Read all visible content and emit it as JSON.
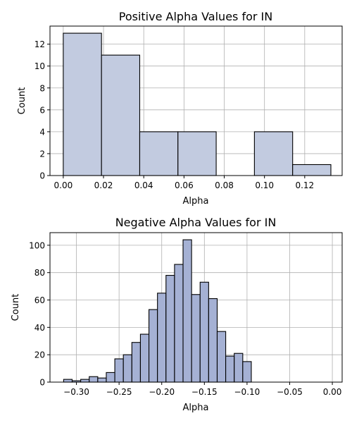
{
  "chart_data": [
    {
      "type": "bar",
      "title": "Positive Alpha Values for IN",
      "xlabel": "Alpha",
      "ylabel": "Count",
      "color": "#c2cbe0",
      "grid": true,
      "xlim": [
        -0.0066,
        0.1386
      ],
      "ylim": [
        0,
        13.65
      ],
      "xticks": [
        "0.00",
        "0.02",
        "0.04",
        "0.06",
        "0.08",
        "0.10",
        "0.12"
      ],
      "xtick_values": [
        0.0,
        0.02,
        0.04,
        0.06,
        0.08,
        0.1,
        0.12
      ],
      "yticks": [
        "0",
        "2",
        "4",
        "6",
        "8",
        "10",
        "12"
      ],
      "ytick_values": [
        0,
        2,
        4,
        6,
        8,
        10,
        12
      ],
      "bins": [
        {
          "x0": 0.0,
          "x1": 0.019,
          "count": 13
        },
        {
          "x0": 0.019,
          "x1": 0.038,
          "count": 11
        },
        {
          "x0": 0.038,
          "x1": 0.057,
          "count": 4
        },
        {
          "x0": 0.057,
          "x1": 0.076,
          "count": 4
        },
        {
          "x0": 0.076,
          "x1": 0.095,
          "count": 0
        },
        {
          "x0": 0.095,
          "x1": 0.114,
          "count": 4
        },
        {
          "x0": 0.114,
          "x1": 0.133,
          "count": 1
        }
      ]
    },
    {
      "type": "bar",
      "title": "Negative Alpha Values for IN",
      "xlabel": "Alpha",
      "ylabel": "Count",
      "color": "#a5b1d4",
      "grid": true,
      "xlim": [
        -0.331,
        0.0115
      ],
      "ylim": [
        0,
        109.2
      ],
      "xticks": [
        "−0.30",
        "−0.25",
        "−0.20",
        "−0.15",
        "−0.10",
        "−0.05",
        "0.00"
      ],
      "xtick_values": [
        -0.3,
        -0.25,
        -0.2,
        -0.15,
        -0.1,
        -0.05,
        0.0
      ],
      "yticks": [
        "0",
        "20",
        "40",
        "60",
        "80",
        "100"
      ],
      "ytick_values": [
        0,
        20,
        40,
        60,
        80,
        100
      ],
      "bins": [
        {
          "x0": -0.315,
          "x1": -0.305,
          "count": 2
        },
        {
          "x0": -0.305,
          "x1": -0.295,
          "count": 1
        },
        {
          "x0": -0.295,
          "x1": -0.285,
          "count": 2
        },
        {
          "x0": -0.285,
          "x1": -0.275,
          "count": 4
        },
        {
          "x0": -0.275,
          "x1": -0.265,
          "count": 3
        },
        {
          "x0": -0.265,
          "x1": -0.255,
          "count": 7
        },
        {
          "x0": -0.255,
          "x1": -0.245,
          "count": 17
        },
        {
          "x0": -0.245,
          "x1": -0.235,
          "count": 20
        },
        {
          "x0": -0.235,
          "x1": -0.225,
          "count": 29
        },
        {
          "x0": -0.225,
          "x1": -0.215,
          "count": 35
        },
        {
          "x0": -0.215,
          "x1": -0.205,
          "count": 53
        },
        {
          "x0": -0.205,
          "x1": -0.195,
          "count": 65
        },
        {
          "x0": -0.195,
          "x1": -0.185,
          "count": 78
        },
        {
          "x0": -0.185,
          "x1": -0.175,
          "count": 86
        },
        {
          "x0": -0.175,
          "x1": -0.165,
          "count": 104
        },
        {
          "x0": -0.165,
          "x1": -0.155,
          "count": 64
        },
        {
          "x0": -0.155,
          "x1": -0.145,
          "count": 73
        },
        {
          "x0": -0.145,
          "x1": -0.135,
          "count": 61
        },
        {
          "x0": -0.135,
          "x1": -0.125,
          "count": 37
        },
        {
          "x0": -0.125,
          "x1": -0.115,
          "count": 19
        },
        {
          "x0": -0.115,
          "x1": -0.105,
          "count": 21
        },
        {
          "x0": -0.105,
          "x1": -0.095,
          "count": 15
        }
      ]
    }
  ]
}
